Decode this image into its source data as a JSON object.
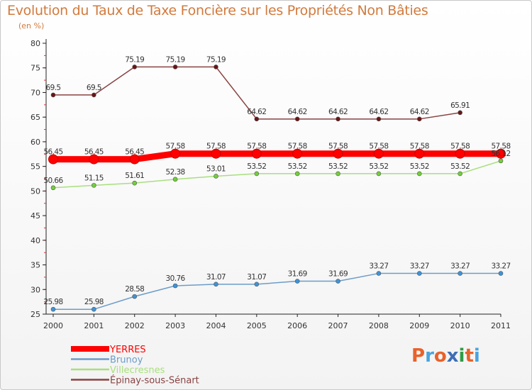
{
  "header": {
    "title": "Evolution du Taux de Taxe Foncière sur les Propriétés Non Bâties",
    "unit": "(en %)"
  },
  "logo": {
    "text": "Proxiti",
    "letters": [
      "P",
      "r",
      "o",
      "x",
      "i",
      "t",
      "i"
    ],
    "colors": [
      "#e8622b",
      "#4aa3df",
      "#e8622b",
      "#3d6fb6",
      "#2e9c46",
      "#e8622b",
      "#4aa3df"
    ]
  },
  "chart_data": {
    "type": "line",
    "title": "Evolution du Taux de Taxe Foncière sur les Propriétés Non Bâties",
    "ylabel": "(en %)",
    "xlabel": "",
    "x": [
      "2000",
      "2001",
      "2002",
      "2003",
      "2004",
      "2005",
      "2006",
      "2007",
      "2008",
      "2009",
      "2010",
      "2011"
    ],
    "ylim": [
      25,
      80
    ],
    "yticks": [
      25,
      30,
      35,
      40,
      45,
      50,
      55,
      60,
      65,
      70,
      75,
      80
    ],
    "grid": false,
    "legend_position": "bottom-left",
    "series": [
      {
        "name": "YERRES",
        "color": "#ff0000",
        "marker_fill": "#ff0000",
        "emphasis": true,
        "values": [
          56.45,
          56.45,
          56.45,
          57.58,
          57.58,
          57.58,
          57.58,
          57.58,
          57.58,
          57.58,
          57.58,
          57.58
        ],
        "labels": [
          "56.45",
          "56.45",
          "56.45",
          "57.58",
          "57.58",
          "57.58",
          "57.58",
          "57.58",
          "57.58",
          "57.58",
          "57.58",
          "57.58"
        ]
      },
      {
        "name": "Brunoy",
        "color": "#6c9cc8",
        "marker_fill": "#3f93d6",
        "emphasis": false,
        "values": [
          25.98,
          25.98,
          28.58,
          30.76,
          31.07,
          31.07,
          31.69,
          31.69,
          33.27,
          33.27,
          33.27,
          33.27
        ],
        "labels": [
          "25.98",
          "25.98",
          "28.58",
          "30.76",
          "31.07",
          "31.07",
          "31.69",
          "31.69",
          "33.27",
          "33.27",
          "33.27",
          "33.27"
        ]
      },
      {
        "name": "Villecresnes",
        "color": "#a9df7e",
        "marker_fill": "#72cf3a",
        "emphasis": false,
        "values": [
          50.66,
          51.15,
          51.61,
          52.38,
          53.01,
          53.52,
          53.52,
          53.52,
          53.52,
          53.52,
          53.52,
          56.12
        ],
        "labels": [
          "50.66",
          "51.15",
          "51.61",
          "52.38",
          "53.01",
          "53.52",
          "53.52",
          "53.52",
          "53.52",
          "53.52",
          "53.52",
          "56.12"
        ]
      },
      {
        "name": "Épinay-sous-Sénart",
        "color": "#8a4242",
        "marker_fill": "#6a1414",
        "emphasis": false,
        "values": [
          69.5,
          69.5,
          75.19,
          75.19,
          75.19,
          64.62,
          64.62,
          64.62,
          64.62,
          64.62,
          65.91,
          null
        ],
        "labels": [
          "69.5",
          "69.5",
          "75.19",
          "75.19",
          "75.19",
          "64.62",
          "64.62",
          "64.62",
          "64.62",
          "64.62",
          "65.91",
          ""
        ]
      }
    ]
  }
}
